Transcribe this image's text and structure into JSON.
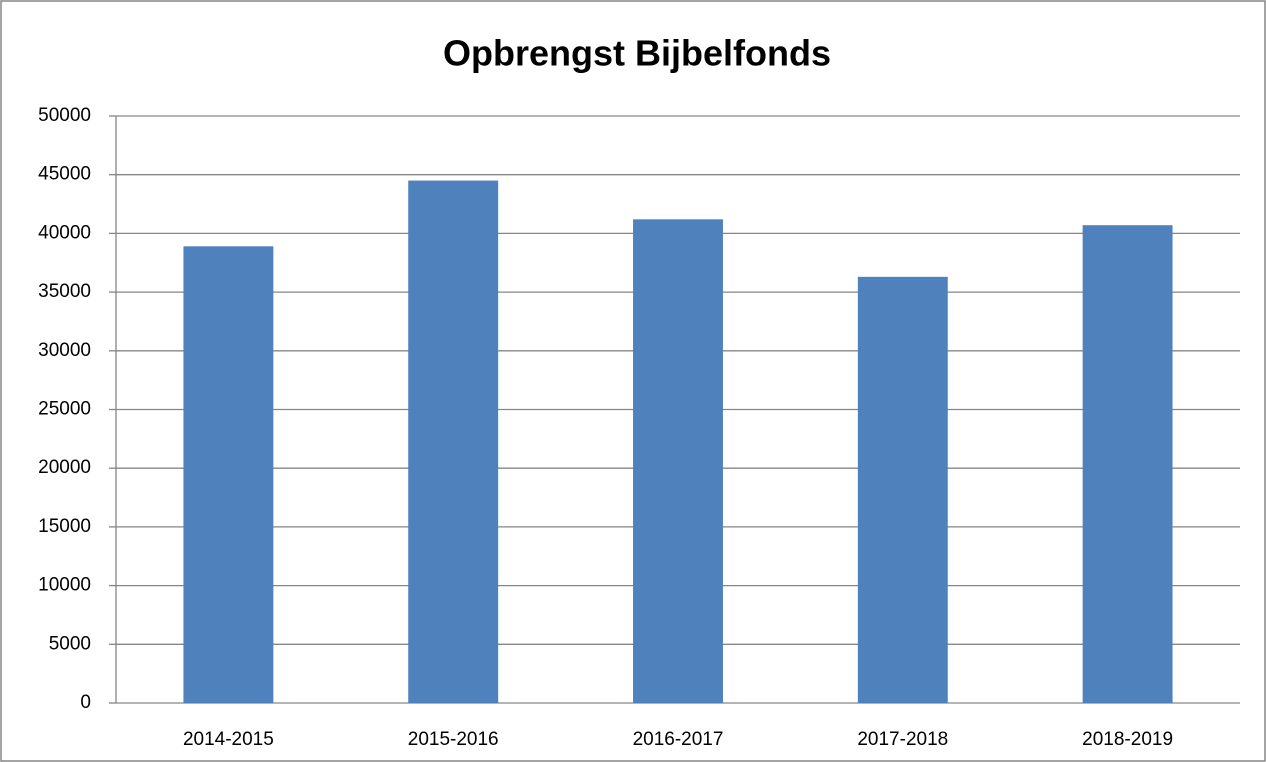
{
  "chart_data": {
    "type": "bar",
    "title": "Opbrengst Bijbelfonds",
    "categories": [
      "2014-2015",
      "2015-2016",
      "2016-2017",
      "2017-2018",
      "2018-2019"
    ],
    "values": [
      38900,
      44500,
      41200,
      36300,
      40700
    ],
    "color": "#4f81bd",
    "ylim": [
      0,
      50000
    ],
    "yticks": [
      0,
      5000,
      10000,
      15000,
      20000,
      25000,
      30000,
      35000,
      40000,
      45000,
      50000
    ],
    "grid": true
  }
}
